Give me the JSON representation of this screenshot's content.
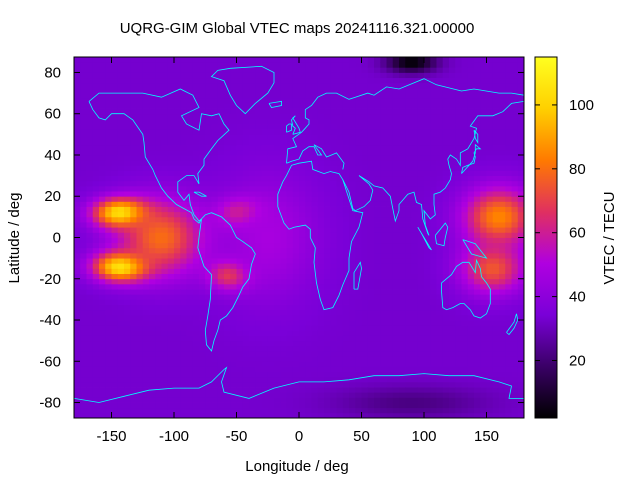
{
  "chart_data": {
    "type": "heatmap",
    "title": "UQRG-GIM Global VTEC maps 20241116.321.00000",
    "xlabel": "Longitude / deg",
    "ylabel": "Latitude / deg",
    "colorbar_label": "VTEC / TECU",
    "xlim": [
      -180,
      180
    ],
    "ylim": [
      -87.5,
      87.5
    ],
    "clim": [
      2,
      115
    ],
    "x_ticks": [
      -150,
      -100,
      -50,
      0,
      50,
      100,
      150
    ],
    "y_ticks": [
      -80,
      -60,
      -40,
      -20,
      0,
      20,
      40,
      60,
      80
    ],
    "colorbar_ticks": [
      20,
      40,
      60,
      80,
      100
    ],
    "colormap": [
      "#000000",
      "#3a0066",
      "#7a00d8",
      "#b000e0",
      "#e03060",
      "#ff7a00",
      "#ffd000",
      "#ffff20"
    ],
    "coastline_color": "#00ffff",
    "grid": false,
    "lon_step": 5,
    "lat_step": 2.5,
    "features": [
      {
        "lon": -142,
        "lat": 12,
        "value": 112,
        "sx": 22,
        "sy": 7
      },
      {
        "lon": -142,
        "lat": -14,
        "value": 112,
        "sx": 22,
        "sy": 7
      },
      {
        "lon": -110,
        "lat": 0,
        "value": 80,
        "sx": 35,
        "sy": 18
      },
      {
        "lon": -45,
        "lat": 12,
        "value": 78,
        "sx": 18,
        "sy": 7
      },
      {
        "lon": -55,
        "lat": -18,
        "value": 80,
        "sx": 16,
        "sy": 7
      },
      {
        "lon": 160,
        "lat": 10,
        "value": 85,
        "sx": 28,
        "sy": 14
      },
      {
        "lon": 155,
        "lat": -15,
        "value": 75,
        "sx": 25,
        "sy": 12
      },
      {
        "lon": -25,
        "lat": 0,
        "value": 48,
        "sx": 40,
        "sy": 30
      },
      {
        "lon": 90,
        "lat": 85,
        "value": 2,
        "sx": 20,
        "sy": 5
      },
      {
        "lon": 90,
        "lat": -80,
        "value": 22,
        "sx": 60,
        "sy": 8
      }
    ],
    "background_value": 33
  }
}
